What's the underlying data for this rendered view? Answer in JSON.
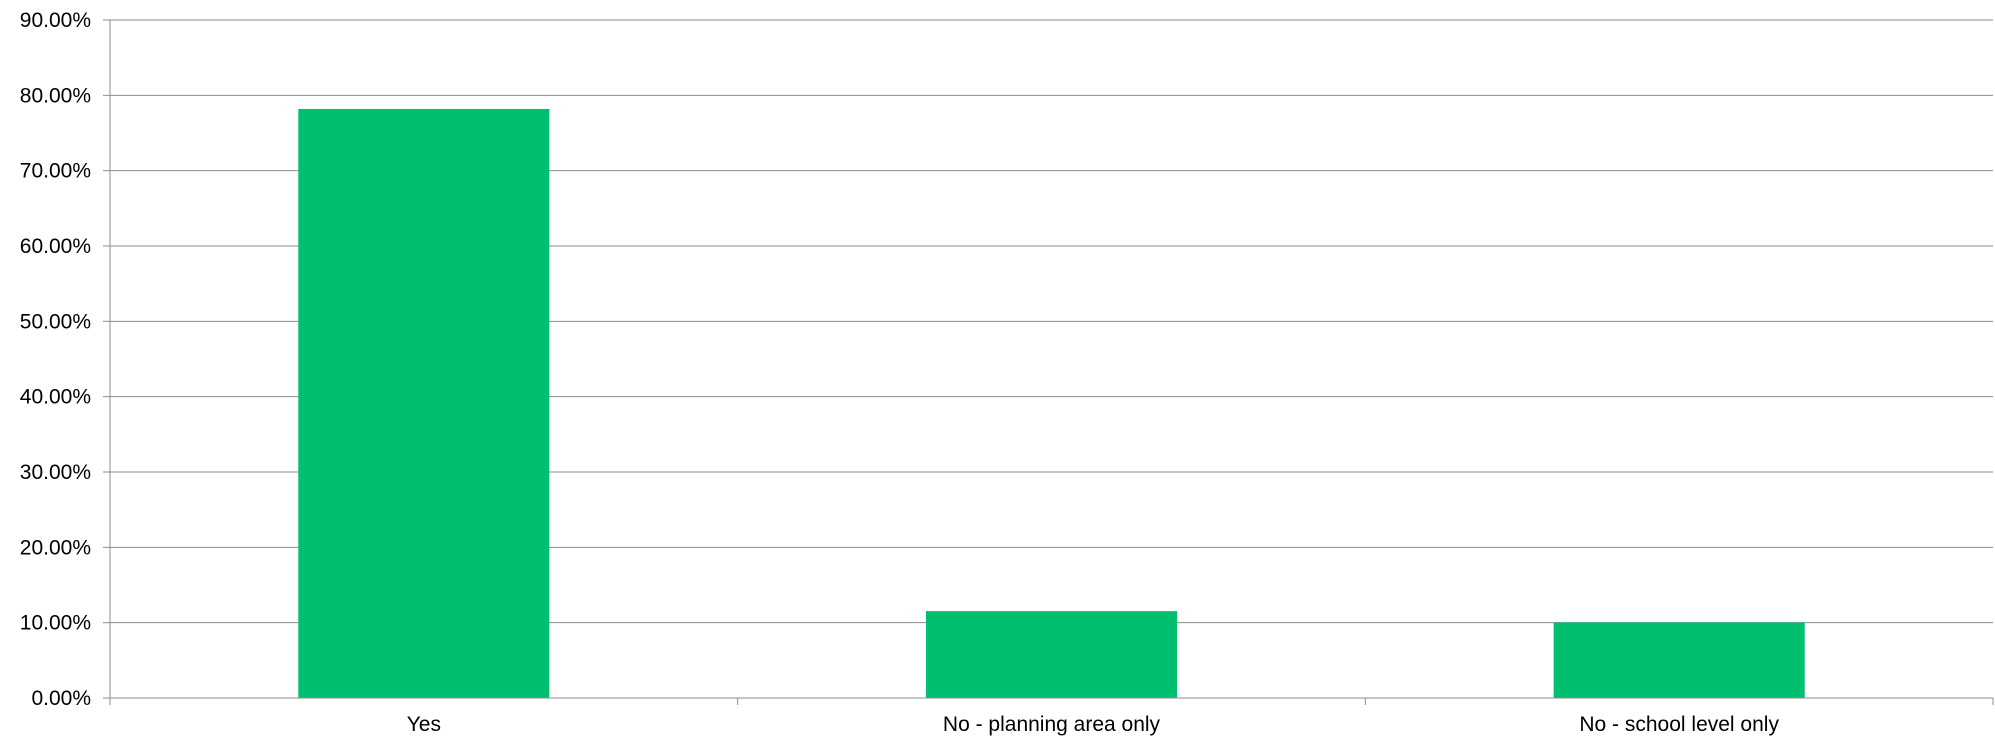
{
  "chart_data": {
    "type": "bar",
    "title": "",
    "xlabel": "",
    "ylabel": "",
    "categories": [
      "Yes",
      "No - planning area only",
      "No - school level only"
    ],
    "values": [
      0.7819,
      0.1153,
      0.1003
    ],
    "ylim": [
      0,
      0.9
    ],
    "yticks": [
      0,
      0.1,
      0.2,
      0.3,
      0.4,
      0.5,
      0.6,
      0.7,
      0.8,
      0.9
    ],
    "ytick_labels": [
      "0.00%",
      "10.00%",
      "20.00%",
      "30.00%",
      "40.00%",
      "50.00%",
      "60.00%",
      "70.00%",
      "80.00%",
      "90.00%"
    ],
    "grid": true,
    "legend": "none",
    "bar_color": "#00BF6F",
    "grid_color": "#8C8C8C",
    "axis_color": "#8C8C8C"
  }
}
